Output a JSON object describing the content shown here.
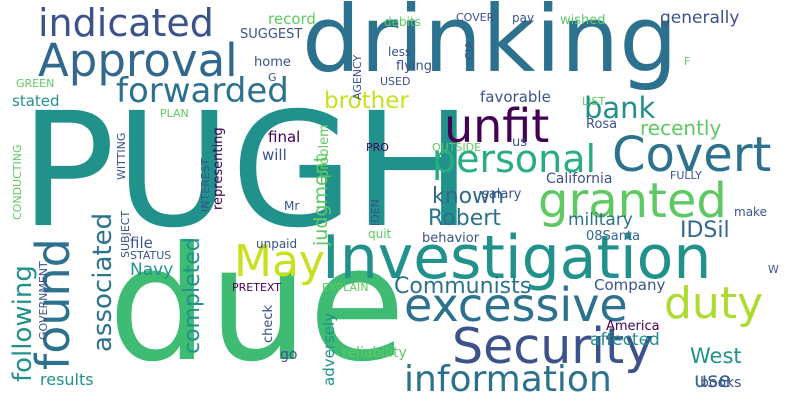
{
  "words": {
    "pugh": "PUGH",
    "due": "due",
    "drinking": "drinking",
    "investigation": "Investigation",
    "approval": "Approval",
    "excessive": "excessive",
    "security": "Security",
    "information": "information",
    "granted": "granted",
    "covert": "Covert",
    "unfit": "unfit",
    "found": "found",
    "personal": "personal",
    "duty": "duty",
    "indicated": "indicated",
    "forwarded": "forwarded",
    "may": "May",
    "bank": "bank",
    "communists": "Communists",
    "brother": "brother",
    "associated": "associated",
    "following": "following",
    "robert": "Robert",
    "known": "known",
    "recently": "recently",
    "idsil": "IDSil",
    "west": "West",
    "completed": "completed",
    "use": "use",
    "generally": "generally",
    "record": "record",
    "suggest": "SUGGEST",
    "judgment": "judgment",
    "military": "military",
    "navy": "Navy",
    "results": "results",
    "stated": "stated",
    "favorable": "favorable",
    "adversely": "adversely",
    "affected": "affected",
    "reliability": "reliability",
    "company": "Company",
    "america": "America",
    "books": "books",
    "california": "California",
    "salary": "salary",
    "representing": "representing",
    "final": "final",
    "will": "will",
    "mr": "Mr",
    "quit": "quit",
    "behavior": "behavior",
    "santa": "08Santa",
    "file": "file",
    "unpaid": "unpaid",
    "status": "STATUS",
    "pretext": "PRETEXT",
    "explain": "EXPLAIN",
    "check": "check",
    "go": "go",
    "government": "GOVERNMENT",
    "conducting": "CONDUCTING",
    "witting": "WITTING",
    "subject": "SUBJECT",
    "interest": "INTEREST",
    "plan": "PLAN",
    "problem": "problem",
    "iden": "IDEN",
    "outside": "OUTSIDE",
    "pro": "PRO",
    "us": "us",
    "rosa": "Rosa",
    "fully": "FULLY",
    "make": "make",
    "w": "W",
    "list": "LIST",
    "agency": "AGENCY",
    "cia": "CIA",
    "less": "less",
    "flying": "flying",
    "used": "USED",
    "debits": "debits",
    "cover": "COVER",
    "pay": "pay",
    "wished": "wished",
    "home": "home",
    "g": "G",
    "green": "GREEN",
    "f": "F"
  },
  "colors": {
    "dark_purple": "#440154",
    "indigo": "#472d7b",
    "slate_blue": "#3b528b",
    "steel_blue": "#2c728e",
    "teal": "#21918c",
    "sea_green": "#28ae80",
    "green": "#5ec962",
    "lime": "#addc30",
    "yellow_green": "#c8e020"
  }
}
